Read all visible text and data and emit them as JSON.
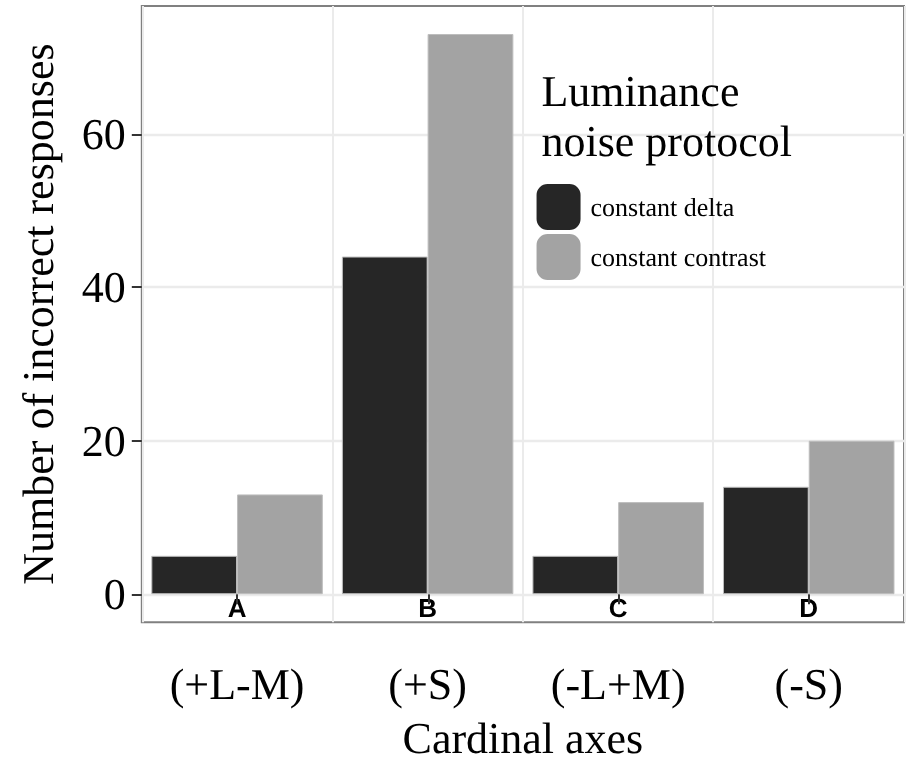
{
  "chart_data": {
    "type": "bar",
    "xlabel": "Cardinal axes",
    "ylabel": "Number of incorrect responses",
    "legend_title": "Luminance\nnoise protocol",
    "categories": [
      "(+L-M)",
      "(+S)",
      "(-L+M)",
      "(-S)"
    ],
    "series": [
      {
        "name": "constant delta",
        "color": "#262626",
        "values": [
          5,
          44,
          5,
          14
        ]
      },
      {
        "name": "constant contrast",
        "color": "#a3a3a3",
        "values": [
          13,
          73,
          12,
          20
        ]
      }
    ],
    "ylim": [
      -3.65,
      76.65
    ],
    "yticks": [
      0,
      20,
      40,
      60
    ],
    "grid": true,
    "legend": "top right",
    "annotations": [
      "A",
      "B",
      "C",
      "D"
    ]
  }
}
